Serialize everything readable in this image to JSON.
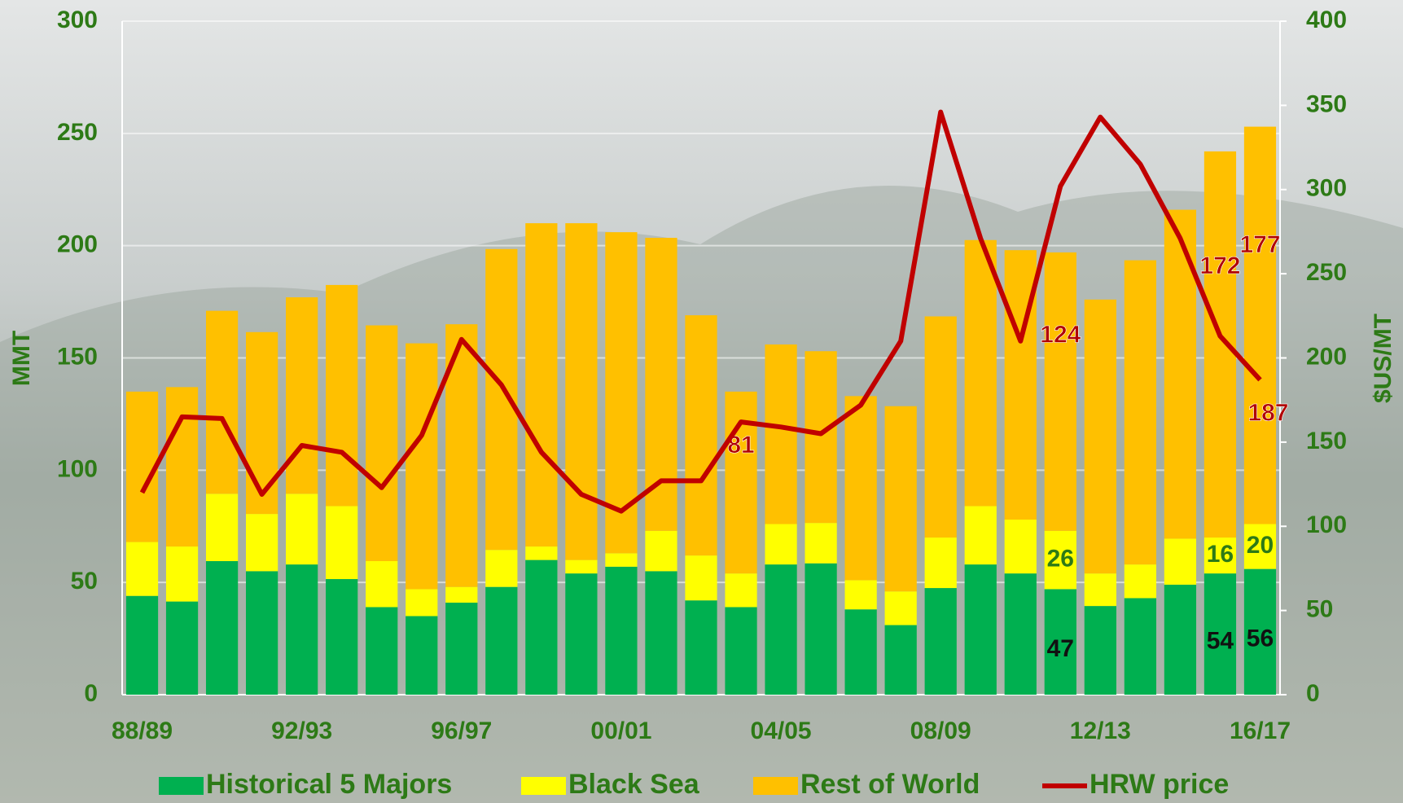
{
  "chart_data": {
    "type": "stacked-bar-line",
    "y_label": "MMT",
    "y2_label": "$US/MT",
    "categories": [
      "88/89",
      null,
      null,
      null,
      "92/93",
      null,
      null,
      null,
      "96/97",
      null,
      null,
      null,
      "00/01",
      null,
      null,
      null,
      "04/05",
      null,
      null,
      null,
      "08/09",
      null,
      null,
      null,
      "12/13",
      null,
      null,
      null,
      "16/17"
    ],
    "ylim": [
      0,
      300
    ],
    "yticks": [
      0,
      50,
      100,
      150,
      200,
      250,
      300
    ],
    "y2lim": [
      0,
      400
    ],
    "y2ticks": [
      0,
      50,
      100,
      150,
      200,
      250,
      300,
      350,
      400
    ],
    "grid": true,
    "series": [
      {
        "name": "Historical 5 Majors",
        "color": "#00b050",
        "values": [
          44,
          41.5,
          59.5,
          55,
          58,
          51.5,
          39,
          35,
          41,
          48,
          60,
          54,
          57,
          55,
          42,
          39,
          58,
          58.5,
          38,
          31,
          47.5,
          58,
          54,
          47,
          39.5,
          43,
          49,
          54,
          56
        ],
        "value_labels": [
          null,
          null,
          null,
          null,
          null,
          null,
          null,
          null,
          null,
          null,
          null,
          null,
          null,
          null,
          null,
          null,
          null,
          null,
          null,
          null,
          null,
          null,
          null,
          "47",
          null,
          null,
          null,
          "54",
          "56"
        ]
      },
      {
        "name": "Black Sea",
        "color": "#ffff00",
        "values": [
          24,
          24.5,
          30,
          25.5,
          31.5,
          32.5,
          20.5,
          12,
          7,
          16.5,
          6,
          6,
          6,
          18,
          20,
          15,
          18,
          18,
          13,
          15,
          22.5,
          26,
          24,
          26,
          14.5,
          15,
          20.5,
          16,
          20
        ],
        "value_labels": [
          null,
          null,
          null,
          null,
          null,
          null,
          null,
          null,
          null,
          null,
          null,
          null,
          null,
          null,
          null,
          null,
          null,
          null,
          null,
          null,
          null,
          null,
          null,
          "26",
          null,
          null,
          null,
          "16",
          "20"
        ]
      },
      {
        "name": "Rest of World",
        "color": "#ffc000",
        "values": [
          67,
          71,
          81.5,
          81,
          87.5,
          98.5,
          105,
          109.5,
          117,
          134,
          144,
          150,
          143,
          130.5,
          107,
          81,
          80,
          76.5,
          82,
          82.5,
          98.5,
          118.5,
          120,
          124,
          122,
          135.5,
          146.5,
          172,
          177
        ],
        "value_labels": [
          null,
          null,
          null,
          null,
          null,
          null,
          null,
          null,
          null,
          null,
          null,
          null,
          null,
          null,
          null,
          "81",
          null,
          null,
          null,
          null,
          null,
          null,
          null,
          "124",
          null,
          null,
          null,
          "172",
          "177"
        ]
      },
      {
        "name": "HRW price",
        "color": "#c00000",
        "axis": "y2",
        "values": [
          120,
          165,
          164,
          119,
          148,
          144,
          123,
          154,
          211,
          184,
          144,
          119,
          109,
          127,
          127,
          162,
          159,
          155,
          172,
          210,
          346,
          271,
          210,
          302,
          343,
          315,
          271,
          213,
          187
        ],
        "value_labels": [
          null,
          null,
          null,
          null,
          null,
          null,
          null,
          null,
          null,
          null,
          null,
          null,
          null,
          null,
          null,
          null,
          null,
          null,
          null,
          null,
          null,
          null,
          null,
          null,
          null,
          null,
          null,
          null,
          "187"
        ]
      }
    ]
  }
}
